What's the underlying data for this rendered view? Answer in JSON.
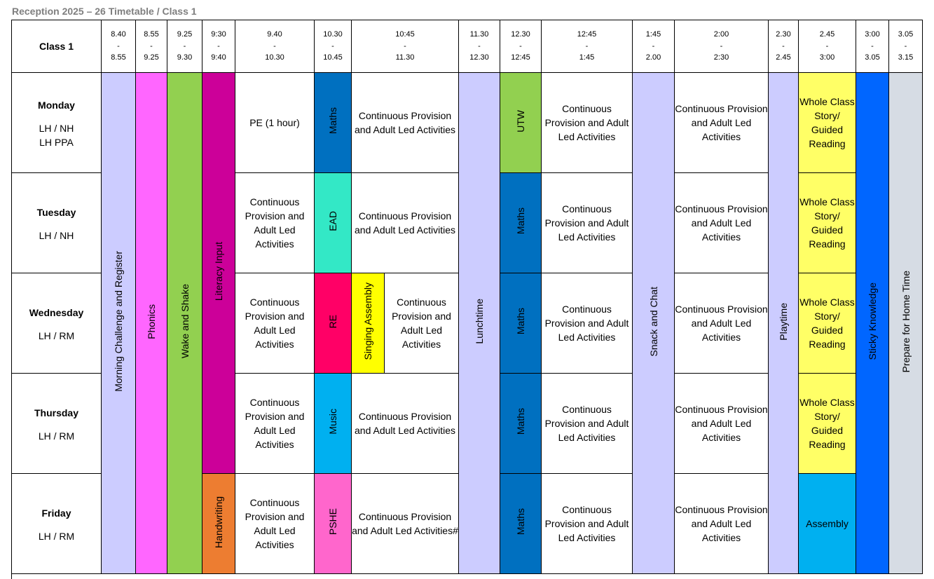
{
  "title": "Reception 2025 – 26 Timetable / Class 1",
  "class_label": "Class 1",
  "time_slots": [
    {
      "start": "8.40",
      "sep": "-",
      "end": "8.55"
    },
    {
      "start": "8.55",
      "sep": "-",
      "end": "9.25"
    },
    {
      "start": "9.25",
      "sep": "-",
      "end": "9.30"
    },
    {
      "start": "9:30",
      "sep": "-",
      "end": "9:40"
    },
    {
      "start": "9.40",
      "sep": "-",
      "end": "10.30"
    },
    {
      "start": "10.30",
      "sep": "-",
      "end": "10.45"
    },
    {
      "start": "10:45",
      "sep": "-",
      "end": "11.30"
    },
    {
      "start": "11.30",
      "sep": "-",
      "end": "12.30"
    },
    {
      "start": "12.30",
      "sep": "-",
      "end": "12:45"
    },
    {
      "start": "12:45",
      "sep": "-",
      "end": "1:45"
    },
    {
      "start": "1:45",
      "sep": "-",
      "end": "2.00"
    },
    {
      "start": "2:00",
      "sep": "-",
      "end": "2:30"
    },
    {
      "start": "2.30",
      "sep": "-",
      "end": "2.45"
    },
    {
      "start": "2.45",
      "sep": "-",
      "end": "3:00"
    },
    {
      "start": "3:00",
      "sep": "-",
      "end": "3.05"
    },
    {
      "start": "3.05",
      "sep": "-",
      "end": "3.15"
    }
  ],
  "days": [
    {
      "name": "Monday",
      "staff": "LH / NH\nLH PPA"
    },
    {
      "name": "Tuesday",
      "staff": "LH / NH"
    },
    {
      "name": "Wednesday",
      "staff": "LH / RM"
    },
    {
      "name": "Thursday",
      "staff": "LH / RM"
    },
    {
      "name": "Friday",
      "staff": "LH / RM"
    }
  ],
  "spanning": {
    "morning_challenge": "Morning Challenge and Register",
    "phonics": "Phonics",
    "wake_and_shake": "Wake and Shake",
    "literacy_input": "Literacy Input",
    "lunchtime": "Lunchtime",
    "snack_and_chat": "Snack and Chat",
    "playtime": "Playtime",
    "sticky_knowledge": "Sticky Knowledge",
    "prepare_home": "Prepare for Home Time"
  },
  "cells": {
    "mon_940": "PE (1 hour)",
    "mon_1030": "Maths",
    "mon_1045": "Continuous Provision and Adult Led Activities",
    "mon_1230": "UTW",
    "mon_1245": "Continuous Provision and Adult Led Activities",
    "mon_200": "Continuous Provision and Adult Led Activities",
    "mon_245": "Whole Class Story/ Guided Reading",
    "tue_940": "Continuous Provision and Adult Led Activities",
    "tue_1030": "EAD",
    "tue_1045": "Continuous Provision and Adult Led Activities",
    "tue_1230": "Maths",
    "tue_1245": "Continuous Provision and Adult Led Activities",
    "tue_200": "Continuous Provision and Adult Led Activities",
    "tue_245": "Whole Class Story/ Guided Reading",
    "wed_940": "Continuous Provision and Adult Led Activities",
    "wed_1030": "RE",
    "wed_1045a": "Singing Assembly",
    "wed_1045b": "Continuous Provision and Adult Led Activities",
    "wed_1230": "Maths",
    "wed_1245": "Continuous Provision and Adult Led Activities",
    "wed_200": "Continuous Provision and Adult Led Activities",
    "wed_245": "Whole Class Story/ Guided Reading",
    "thu_940": "Continuous Provision and Adult Led Activities",
    "thu_1030": "Music",
    "thu_1045": "Continuous Provision and Adult Led Activities",
    "thu_1230": "Maths",
    "thu_1245": "Continuous Provision and Adult Led Activities",
    "thu_200": "Continuous Provision and Adult Led Activities",
    "thu_245": "Whole Class Story/ Guided Reading",
    "fri_930": "Handwriting",
    "fri_940": "Continuous Provision and Adult Led Activities",
    "fri_1030": "PSHE",
    "fri_1045": "Continuous Provision and Adult Led Activities#",
    "fri_1230": "Maths",
    "fri_1245": "Continuous Provision and Adult Led Activities",
    "fri_200": "Continuous Provision and Adult Led Activities",
    "fri_245": "Assembly"
  },
  "colors": {
    "lavender": "#ccccff",
    "pink": "#ff66ff",
    "green": "#92d050",
    "magenta": "#cc0099",
    "blue": "#0070c0",
    "mint": "#33e8c6",
    "crimson": "#ff0066",
    "yellow": "#ffff00",
    "light_yellow": "#ffff66",
    "sky": "#00b0f0",
    "orange": "#ed7d31",
    "hot_pink": "#ff66cc",
    "royal_blue": "#0066ff",
    "grey": "#d6dce4"
  }
}
